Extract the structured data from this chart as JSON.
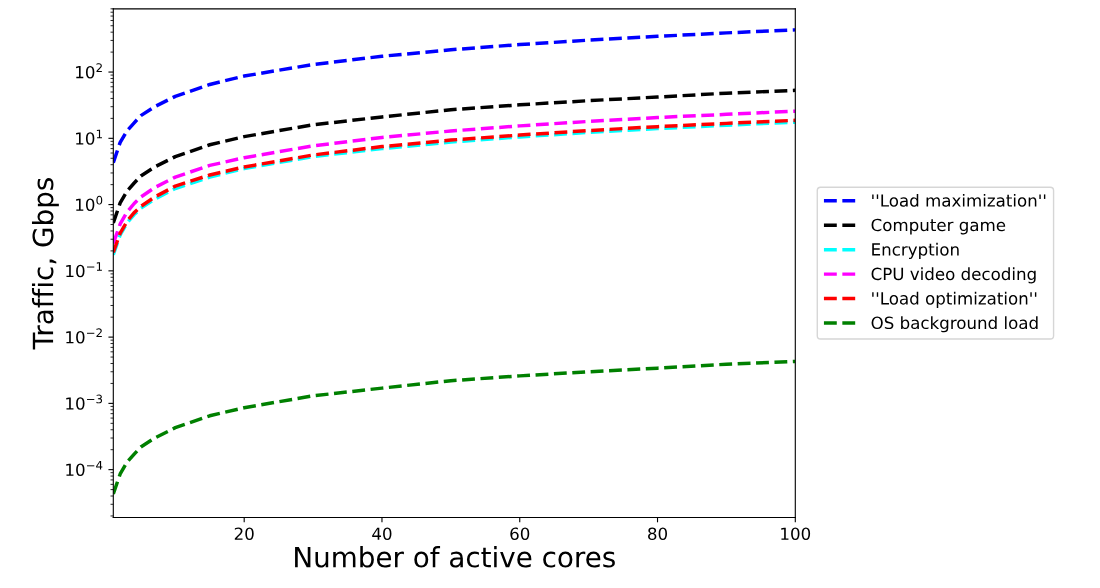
{
  "chart_data": {
    "type": "line",
    "xlabel": "Number of active cores",
    "ylabel": "Traffic, Gbps",
    "x": [
      1,
      2,
      3,
      4,
      5,
      7,
      10,
      15,
      20,
      30,
      40,
      50,
      60,
      70,
      80,
      90,
      100
    ],
    "series": [
      {
        "name": "''Load maximization''",
        "color": "#0000ff",
        "values": [
          4.3,
          8.7,
          13,
          17,
          22,
          30,
          43,
          65,
          87,
          130,
          173,
          217,
          260,
          303,
          346,
          390,
          433
        ]
      },
      {
        "name": "Computer game",
        "color": "#000000",
        "values": [
          0.53,
          1.06,
          1.6,
          2.1,
          2.7,
          3.7,
          5.3,
          8,
          10.6,
          16,
          21,
          27,
          32,
          37,
          42,
          48,
          53
        ]
      },
      {
        "name": "Encryption",
        "color": "#00ffff",
        "values": [
          0.175,
          0.35,
          0.53,
          0.7,
          0.88,
          1.2,
          1.75,
          2.6,
          3.5,
          5.3,
          7,
          8.8,
          10.5,
          12.3,
          14,
          15.8,
          17.5
        ]
      },
      {
        "name": "CPU video decoding",
        "color": "#ff00ff",
        "values": [
          0.26,
          0.51,
          0.77,
          1.03,
          1.3,
          1.8,
          2.6,
          3.9,
          5.1,
          7.7,
          10.3,
          12.9,
          15.4,
          18,
          20.6,
          23,
          25.7
        ]
      },
      {
        "name": "''Load optimization''",
        "color": "#ff0000",
        "values": [
          0.19,
          0.37,
          0.56,
          0.75,
          0.94,
          1.3,
          1.9,
          2.8,
          3.7,
          5.6,
          7.5,
          9.4,
          11.2,
          13.1,
          15,
          16.8,
          18.7
        ]
      },
      {
        "name": "OS background load",
        "color": "#008000",
        "values": [
          4.3e-05,
          8.6e-05,
          0.00013,
          0.00017,
          0.00022,
          0.0003,
          0.00043,
          0.00065,
          0.00086,
          0.0013,
          0.0017,
          0.0022,
          0.0026,
          0.003,
          0.0034,
          0.0039,
          0.0043
        ]
      }
    ],
    "log": "y",
    "xlim": [
      1,
      100
    ],
    "ylim": [
      1.9e-05,
      900
    ],
    "xticks": [
      20,
      40,
      60,
      80,
      100
    ],
    "yticks": [
      {
        "value": 0.0001,
        "label": "10$^{−4}$"
      },
      {
        "value": 0.001,
        "label": "10$^{−3}$"
      },
      {
        "value": 0.01,
        "label": "10$^{−2}$"
      },
      {
        "value": 0.1,
        "label": "10$^{−1}$"
      },
      {
        "value": 1,
        "label": "10$^{0}$"
      },
      {
        "value": 10,
        "label": "10$^{1}$"
      },
      {
        "value": 100,
        "label": "10$^{2}$"
      }
    ],
    "line_style": "dashed",
    "marker": "none",
    "grid": false,
    "legend": "right"
  }
}
